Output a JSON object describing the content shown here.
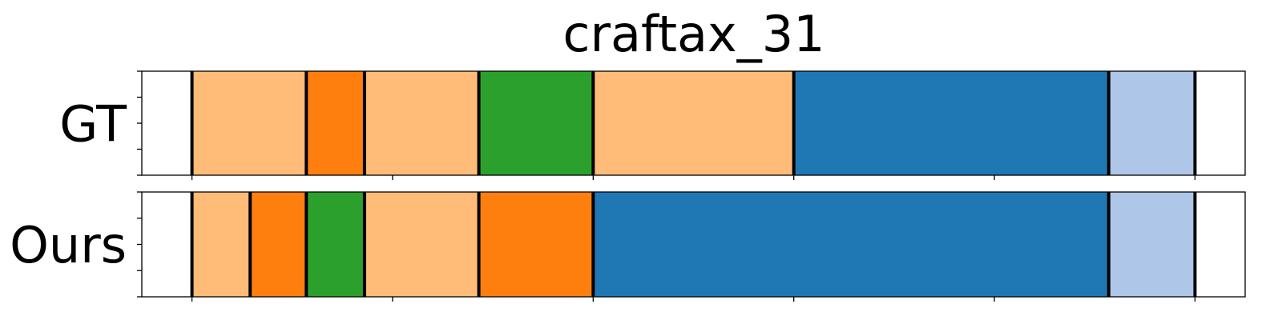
{
  "chart_data": {
    "type": "segmentation_timeline",
    "title": "craftax_31",
    "xlabel": "",
    "ylabel": "",
    "xlim": [
      -25,
      525
    ],
    "x_ticks": [
      0,
      100,
      200,
      300,
      400,
      500
    ],
    "x_tick_labels_visible": false,
    "y_ticks_per_row": 5,
    "grid": false,
    "legend": "none",
    "colors": {
      "light_orange": "#ffbb78",
      "orange": "#ff7f0e",
      "green": "#2ca02c",
      "blue": "#1f77b4",
      "light_blue": "#aec7e8",
      "boundary": "#000000",
      "frame": "#000000",
      "background": "#ffffff"
    },
    "rows": [
      {
        "label": "GT",
        "segments": [
          {
            "start": 0,
            "end": 57,
            "color": "#ffbb78"
          },
          {
            "start": 57,
            "end": 86,
            "color": "#ff7f0e"
          },
          {
            "start": 86,
            "end": 143,
            "color": "#ffbb78"
          },
          {
            "start": 143,
            "end": 200,
            "color": "#2ca02c"
          },
          {
            "start": 200,
            "end": 300,
            "color": "#ffbb78"
          },
          {
            "start": 300,
            "end": 457,
            "color": "#1f77b4"
          },
          {
            "start": 457,
            "end": 500,
            "color": "#aec7e8"
          }
        ]
      },
      {
        "label": "Ours",
        "segments": [
          {
            "start": 0,
            "end": 29,
            "color": "#ffbb78"
          },
          {
            "start": 29,
            "end": 57,
            "color": "#ff7f0e"
          },
          {
            "start": 57,
            "end": 86,
            "color": "#2ca02c"
          },
          {
            "start": 86,
            "end": 143,
            "color": "#ffbb78"
          },
          {
            "start": 143,
            "end": 200,
            "color": "#ff7f0e"
          },
          {
            "start": 200,
            "end": 457,
            "color": "#1f77b4"
          },
          {
            "start": 457,
            "end": 500,
            "color": "#aec7e8"
          }
        ]
      }
    ]
  }
}
